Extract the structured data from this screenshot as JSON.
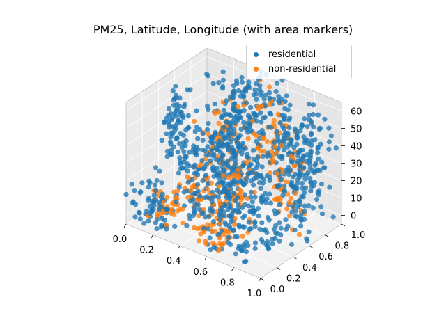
{
  "chart_data": {
    "type": "scatter",
    "projection": "3d",
    "title": "PM25, Latitude, Longitude (with area markers)",
    "xlabel": "",
    "ylabel": "",
    "zlabel": "",
    "xlim": [
      0,
      1
    ],
    "ylim": [
      0,
      1
    ],
    "zlim": [
      -5,
      65
    ],
    "x_ticks": [
      "0.0",
      "0.2",
      "0.4",
      "0.6",
      "0.8",
      "1.0"
    ],
    "y_ticks": [
      "0.0",
      "0.2",
      "0.4",
      "0.6",
      "0.8",
      "1.0"
    ],
    "z_ticks": [
      "0",
      "10",
      "20",
      "30",
      "40",
      "50",
      "60"
    ],
    "grid": true,
    "legend_position": "top-right",
    "series": [
      {
        "name": "residential",
        "color": "#1f77b4",
        "clusters": [
          {
            "x": 0.05,
            "y": 0.55,
            "z": 35,
            "n": 70,
            "sx": 0.04,
            "sy": 0.06,
            "sz": 14
          },
          {
            "x": 0.25,
            "y": 0.75,
            "z": 30,
            "n": 90,
            "sx": 0.07,
            "sy": 0.08,
            "sz": 18
          },
          {
            "x": 0.45,
            "y": 0.85,
            "z": 45,
            "n": 100,
            "sx": 0.08,
            "sy": 0.08,
            "sz": 14
          },
          {
            "x": 0.7,
            "y": 0.8,
            "z": 40,
            "n": 90,
            "sx": 0.08,
            "sy": 0.08,
            "sz": 14
          },
          {
            "x": 0.9,
            "y": 0.8,
            "z": 35,
            "n": 80,
            "sx": 0.05,
            "sy": 0.1,
            "sz": 14
          },
          {
            "x": 0.3,
            "y": 0.3,
            "z": 20,
            "n": 80,
            "sx": 0.08,
            "sy": 0.08,
            "sz": 15
          },
          {
            "x": 0.55,
            "y": 0.4,
            "z": 25,
            "n": 90,
            "sx": 0.08,
            "sy": 0.1,
            "sz": 15
          },
          {
            "x": 0.8,
            "y": 0.35,
            "z": 20,
            "n": 80,
            "sx": 0.07,
            "sy": 0.09,
            "sz": 15
          },
          {
            "x": 0.7,
            "y": 0.1,
            "z": 15,
            "n": 70,
            "sx": 0.1,
            "sy": 0.06,
            "sz": 12
          },
          {
            "x": 0.15,
            "y": 0.1,
            "z": 8,
            "n": 60,
            "sx": 0.08,
            "sy": 0.06,
            "sz": 8
          },
          {
            "x": 0.95,
            "y": 0.55,
            "z": 30,
            "n": 70,
            "sx": 0.04,
            "sy": 0.1,
            "sz": 14
          },
          {
            "x": 0.4,
            "y": 0.6,
            "z": 30,
            "n": 80,
            "sx": 0.08,
            "sy": 0.08,
            "sz": 16
          }
        ]
      },
      {
        "name": "non-residential",
        "color": "#ff7f0e",
        "clusters": [
          {
            "x": 0.3,
            "y": 0.7,
            "z": 35,
            "n": 50,
            "sx": 0.06,
            "sy": 0.08,
            "sz": 14
          },
          {
            "x": 0.55,
            "y": 0.85,
            "z": 38,
            "n": 55,
            "sx": 0.07,
            "sy": 0.08,
            "sz": 14
          },
          {
            "x": 0.35,
            "y": 0.35,
            "z": 12,
            "n": 45,
            "sx": 0.07,
            "sy": 0.07,
            "sz": 8
          },
          {
            "x": 0.6,
            "y": 0.35,
            "z": 18,
            "n": 45,
            "sx": 0.07,
            "sy": 0.07,
            "sz": 10
          },
          {
            "x": 0.85,
            "y": 0.55,
            "z": 25,
            "n": 40,
            "sx": 0.06,
            "sy": 0.08,
            "sz": 12
          },
          {
            "x": 0.2,
            "y": 0.2,
            "z": 5,
            "n": 40,
            "sx": 0.07,
            "sy": 0.07,
            "sz": 5
          },
          {
            "x": 0.6,
            "y": 0.1,
            "z": 5,
            "n": 35,
            "sx": 0.08,
            "sy": 0.05,
            "sz": 5
          }
        ]
      }
    ]
  }
}
